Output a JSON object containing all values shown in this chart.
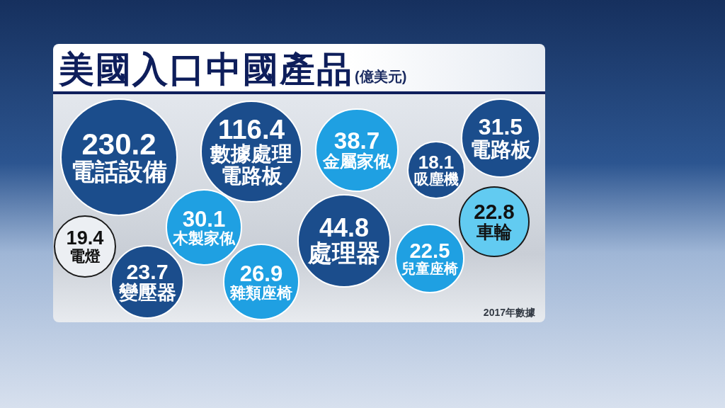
{
  "chart_data": {
    "type": "other",
    "title": "美國入口中國產品",
    "subtitle": "(億美元)",
    "categories": [
      "電話設備",
      "數據處理電路板",
      "金屬家俬",
      "吸塵機",
      "電路板",
      "木製家俬",
      "電燈",
      "處理器",
      "車輪",
      "變壓器",
      "雜類座椅",
      "兒童座椅"
    ],
    "values": [
      230.2,
      116.4,
      38.7,
      18.1,
      31.5,
      30.1,
      19.4,
      44.8,
      22.8,
      23.7,
      26.9,
      22.5
    ],
    "colors": [
      "#1b4d8c",
      "#1b4d8c",
      "#1fa0e2",
      "#1b4d8c",
      "#1b4d8c",
      "#1fa0e2",
      "#eceff3",
      "#1b4d8c",
      "#62cbf1",
      "#1b4d8c",
      "#1fa0e2",
      "#1fa0e2"
    ],
    "data_labels": true,
    "annotations": [
      "2017年數據"
    ]
  }
}
